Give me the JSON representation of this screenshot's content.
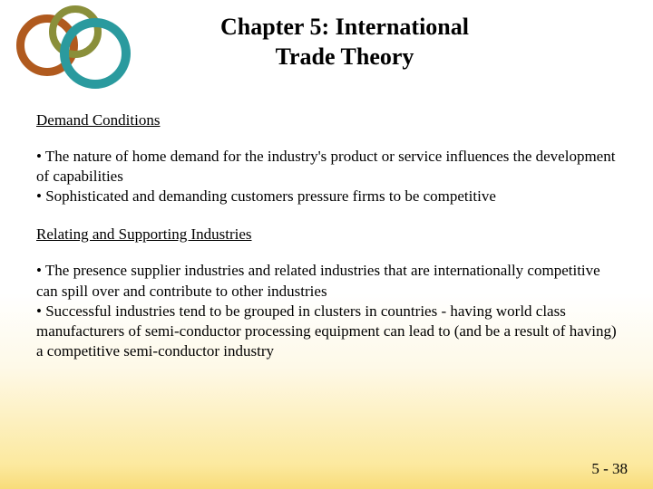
{
  "title_line1": "Chapter 5: International",
  "title_line2": "Trade Theory",
  "section1": {
    "heading": "Demand Conditions",
    "bullets": [
      "• The nature of home demand for the industry's product or service influences the development of capabilities",
      "• Sophisticated and demanding customers pressure firms to be competitive"
    ]
  },
  "section2": {
    "heading": "Relating and Supporting Industries",
    "bullets": [
      "• The presence supplier industries and related industries that are internationally competitive can spill over and contribute to other industries",
      "• Successful industries tend to be grouped in clusters in countries - having world class manufacturers of semi-conductor processing equipment can lead to (and be a result of having) a competitive semi-conductor industry"
    ]
  },
  "page_number": "5 - 38",
  "colors": {
    "ring_orange": "#b05a1e",
    "ring_olive": "#8a8f3a",
    "ring_teal": "#2a9a9e",
    "gradient_bottom": "#f8dc7a"
  }
}
